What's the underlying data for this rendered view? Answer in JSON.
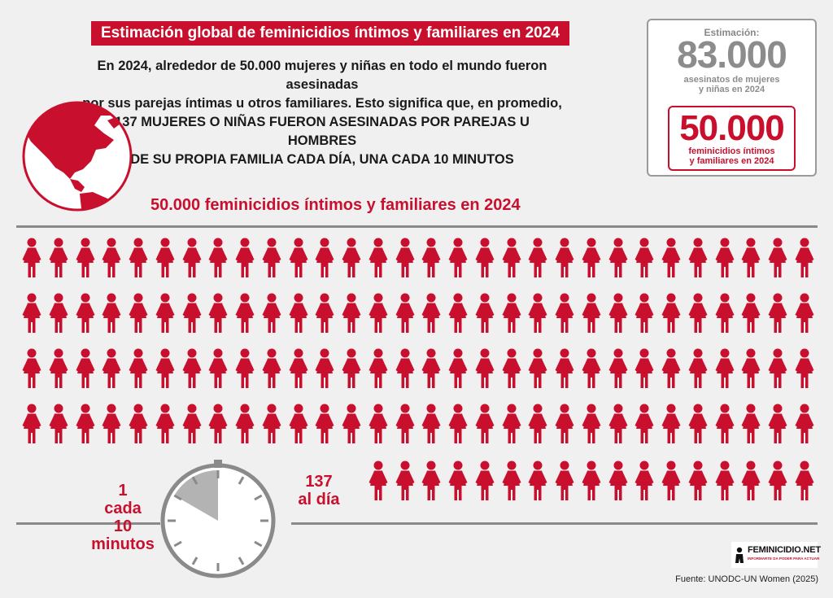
{
  "title": "Estimación global de feminicidios íntimos y familiares en 2024",
  "intro": {
    "line1": "En 2024, alrededor de 50.000 mujeres y niñas en todo el mundo fueron asesinadas",
    "line2": "por sus parejas íntimas u otros familiares. Esto significa que, en promedio,",
    "line3": "137 MUJERES O NIÑAS FUERON ASESINADAS POR PAREJAS U HOMBRES",
    "line4": "DE SU PROPIA FAMILIA CADA DÍA, UNA CADA 10 MINUTOS"
  },
  "subtitle": "50.000 feminicidios íntimos y familiares en 2024",
  "estimate": {
    "label": "Estimación:",
    "total_value": "83.000",
    "total_desc_line1": "asesinatos de mujeres",
    "total_desc_line2": "y niñas en 2024",
    "femicide_value": "50.000",
    "femicide_desc_line1": "feminicidios íntimos",
    "femicide_desc_line2": "y familiares en 2024"
  },
  "figures": {
    "count": 137,
    "full_rows": 4,
    "per_row": 30,
    "last_row_count": 17,
    "color": "#c8102e"
  },
  "clock_caption": {
    "line1": "1",
    "line2": "cada",
    "line3": "10",
    "line4": "minutos",
    "highlight_minutes": 10
  },
  "per_day": {
    "line1": "137",
    "line2": "al día"
  },
  "logo": {
    "name": "FEMINICIDIO.NET",
    "tagline": "INFORMARTE DA PODER PARA ACTUAR"
  },
  "source": "Fuente: UNODC-UN Women (2025)",
  "colors": {
    "accent": "#c8102e",
    "grey": "#8c8c8c",
    "background": "#f0f0f0"
  }
}
